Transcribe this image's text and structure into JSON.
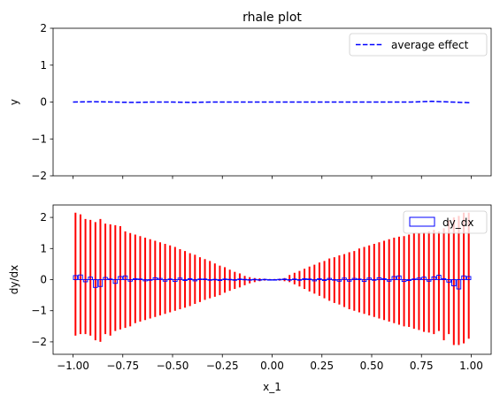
{
  "chart_data": [
    {
      "type": "line",
      "title": "rhale plot",
      "ylabel": "y",
      "xlabel": "",
      "xlim": [
        -1.1,
        1.1
      ],
      "ylim": [
        -2,
        2
      ],
      "y_ticks": [
        2,
        1,
        0,
        -1,
        -2
      ],
      "y_tick_labels": [
        "2",
        "1",
        "0",
        "−1",
        "−2"
      ],
      "x_ticks": [
        -1.0,
        -0.75,
        -0.5,
        -0.25,
        0.0,
        0.25,
        0.5,
        0.75,
        1.0
      ],
      "x_tick_labels_visible": false,
      "grid": false,
      "legend": {
        "placement": "top-right",
        "entries": [
          {
            "label": "average effect",
            "style": "dashed",
            "color": "#0000ff"
          }
        ]
      },
      "series": [
        {
          "name": "average effect",
          "color": "#0000ff",
          "style": "dashed",
          "x": [
            -1.0,
            -0.9,
            -0.8,
            -0.7,
            -0.6,
            -0.5,
            -0.4,
            -0.3,
            -0.2,
            -0.1,
            0.0,
            0.1,
            0.2,
            0.3,
            0.4,
            0.5,
            0.6,
            0.7,
            0.8,
            0.9,
            1.0
          ],
          "y": [
            0.0,
            0.01,
            0.0,
            -0.01,
            0.0,
            0.0,
            -0.01,
            0.0,
            0.0,
            0.0,
            0.0,
            0.0,
            0.0,
            0.0,
            0.0,
            0.0,
            0.0,
            0.0,
            0.02,
            0.0,
            -0.02
          ]
        }
      ]
    },
    {
      "type": "bar",
      "title": "",
      "xlabel": "x_1",
      "ylabel": "dy/dx",
      "xlim": [
        -1.1,
        1.1
      ],
      "ylim": [
        -2.4,
        2.4
      ],
      "x_ticks": [
        -1.0,
        -0.75,
        -0.5,
        -0.25,
        0.0,
        0.25,
        0.5,
        0.75,
        1.0
      ],
      "x_tick_labels": [
        "−1.00",
        "−0.75",
        "−0.50",
        "−0.25",
        "0.00",
        "0.25",
        "0.50",
        "0.75",
        "1.00"
      ],
      "y_ticks": [
        2,
        1,
        0,
        -1,
        -2
      ],
      "y_tick_labels": [
        "2",
        "1",
        "0",
        "−1",
        "−2"
      ],
      "grid": false,
      "legend": {
        "placement": "top-right",
        "entries": [
          {
            "label": "dy_dx",
            "style": "box",
            "color": "#0000ff"
          }
        ]
      },
      "bin_edges": [
        -1.0,
        -0.975,
        -0.95,
        -0.925,
        -0.9,
        -0.875,
        -0.85,
        -0.825,
        -0.8,
        -0.775,
        -0.75,
        -0.725,
        -0.7,
        -0.675,
        -0.65,
        -0.625,
        -0.6,
        -0.575,
        -0.55,
        -0.525,
        -0.5,
        -0.475,
        -0.45,
        -0.425,
        -0.4,
        -0.375,
        -0.35,
        -0.325,
        -0.3,
        -0.275,
        -0.25,
        -0.225,
        -0.2,
        -0.175,
        -0.15,
        -0.125,
        -0.1,
        -0.075,
        -0.05,
        -0.025,
        0.0,
        0.025,
        0.05,
        0.075,
        0.1,
        0.125,
        0.15,
        0.175,
        0.2,
        0.225,
        0.25,
        0.275,
        0.3,
        0.325,
        0.35,
        0.375,
        0.4,
        0.425,
        0.45,
        0.475,
        0.5,
        0.525,
        0.55,
        0.575,
        0.6,
        0.625,
        0.65,
        0.675,
        0.7,
        0.725,
        0.75,
        0.775,
        0.8,
        0.825,
        0.85,
        0.875,
        0.9,
        0.925,
        0.95,
        0.975,
        1.0
      ],
      "series": [
        {
          "name": "dy_dx",
          "color": "#0000ff",
          "style": "box",
          "values": [
            0.13,
            0.15,
            -0.07,
            0.08,
            -0.25,
            -0.22,
            0.07,
            0.02,
            -0.12,
            0.1,
            0.12,
            -0.05,
            0.03,
            0.02,
            -0.04,
            -0.02,
            0.06,
            0.04,
            -0.05,
            0.02,
            -0.06,
            0.05,
            -0.03,
            0.03,
            -0.04,
            0.02,
            0.02,
            -0.02,
            0.01,
            -0.03,
            0.02,
            0.01,
            -0.02,
            0.02,
            0.01,
            -0.01,
            0.01,
            0.0,
            0.01,
            0.0,
            0.0,
            0.01,
            0.02,
            -0.01,
            0.02,
            -0.02,
            0.03,
            0.02,
            -0.04,
            0.03,
            -0.03,
            0.04,
            0.0,
            -0.05,
            0.05,
            -0.05,
            0.04,
            0.02,
            -0.06,
            0.05,
            -0.02,
            0.06,
            0.03,
            -0.05,
            0.1,
            0.12,
            -0.06,
            -0.03,
            0.02,
            0.05,
            0.08,
            -0.05,
            0.09,
            0.14,
            0.03,
            -0.08,
            -0.2,
            -0.3,
            0.12,
            0.1
          ]
        },
        {
          "name": "error",
          "color": "#ff0000",
          "style": "errorbar",
          "x": [
            -0.9875,
            -0.9625,
            -0.9375,
            -0.9125,
            -0.8875,
            -0.8625,
            -0.8375,
            -0.8125,
            -0.7875,
            -0.7625,
            -0.7375,
            -0.7125,
            -0.6875,
            -0.6625,
            -0.6375,
            -0.6125,
            -0.5875,
            -0.5625,
            -0.5375,
            -0.5125,
            -0.4875,
            -0.4625,
            -0.4375,
            -0.4125,
            -0.3875,
            -0.3625,
            -0.3375,
            -0.3125,
            -0.2875,
            -0.2625,
            -0.2375,
            -0.2125,
            -0.1875,
            -0.1625,
            -0.1375,
            -0.1125,
            -0.0875,
            -0.0625,
            -0.0375,
            -0.0125,
            0.0125,
            0.0375,
            0.0625,
            0.0875,
            0.1125,
            0.1375,
            0.1625,
            0.1875,
            0.2125,
            0.2375,
            0.2625,
            0.2875,
            0.3125,
            0.3375,
            0.3625,
            0.3875,
            0.4125,
            0.4375,
            0.4625,
            0.4875,
            0.5125,
            0.5375,
            0.5625,
            0.5875,
            0.6125,
            0.6375,
            0.6625,
            0.6875,
            0.7125,
            0.7375,
            0.7625,
            0.7875,
            0.8125,
            0.8375,
            0.8625,
            0.8875,
            0.9125,
            0.9375,
            0.9625,
            0.9875
          ],
          "high": [
            2.15,
            2.1,
            1.95,
            1.92,
            1.85,
            1.95,
            1.8,
            1.78,
            1.75,
            1.72,
            1.55,
            1.5,
            1.45,
            1.4,
            1.35,
            1.3,
            1.25,
            1.2,
            1.15,
            1.1,
            1.05,
            0.98,
            0.92,
            0.85,
            0.8,
            0.72,
            0.66,
            0.6,
            0.52,
            0.45,
            0.4,
            0.32,
            0.25,
            0.2,
            0.12,
            0.08,
            0.05,
            0.04,
            0.03,
            0.02,
            0.02,
            0.03,
            0.05,
            0.15,
            0.22,
            0.28,
            0.35,
            0.42,
            0.48,
            0.55,
            0.6,
            0.68,
            0.72,
            0.78,
            0.82,
            0.88,
            0.92,
            1.0,
            1.05,
            1.1,
            1.15,
            1.2,
            1.25,
            1.3,
            1.35,
            1.38,
            1.4,
            1.45,
            1.5,
            1.5,
            1.52,
            1.55,
            1.6,
            1.55,
            1.65,
            1.9,
            2.0,
            2.05,
            2.15,
            2.15
          ],
          "low": [
            -1.8,
            -1.75,
            -1.75,
            -1.8,
            -1.95,
            -2.0,
            -1.75,
            -1.8,
            -1.65,
            -1.6,
            -1.55,
            -1.5,
            -1.4,
            -1.35,
            -1.3,
            -1.25,
            -1.2,
            -1.15,
            -1.1,
            -1.05,
            -1.0,
            -0.95,
            -0.9,
            -0.85,
            -0.78,
            -0.72,
            -0.65,
            -0.6,
            -0.55,
            -0.5,
            -0.42,
            -0.36,
            -0.3,
            -0.25,
            -0.18,
            -0.12,
            -0.08,
            -0.05,
            -0.03,
            -0.02,
            -0.02,
            -0.03,
            -0.05,
            -0.08,
            -0.15,
            -0.22,
            -0.3,
            -0.38,
            -0.45,
            -0.52,
            -0.6,
            -0.68,
            -0.75,
            -0.8,
            -0.88,
            -0.95,
            -1.0,
            -1.05,
            -1.1,
            -1.15,
            -1.2,
            -1.25,
            -1.3,
            -1.35,
            -1.4,
            -1.45,
            -1.5,
            -1.52,
            -1.58,
            -1.62,
            -1.68,
            -1.7,
            -1.75,
            -1.65,
            -1.95,
            -1.75,
            -2.1,
            -2.1,
            -2.05,
            -1.9
          ]
        }
      ]
    }
  ]
}
